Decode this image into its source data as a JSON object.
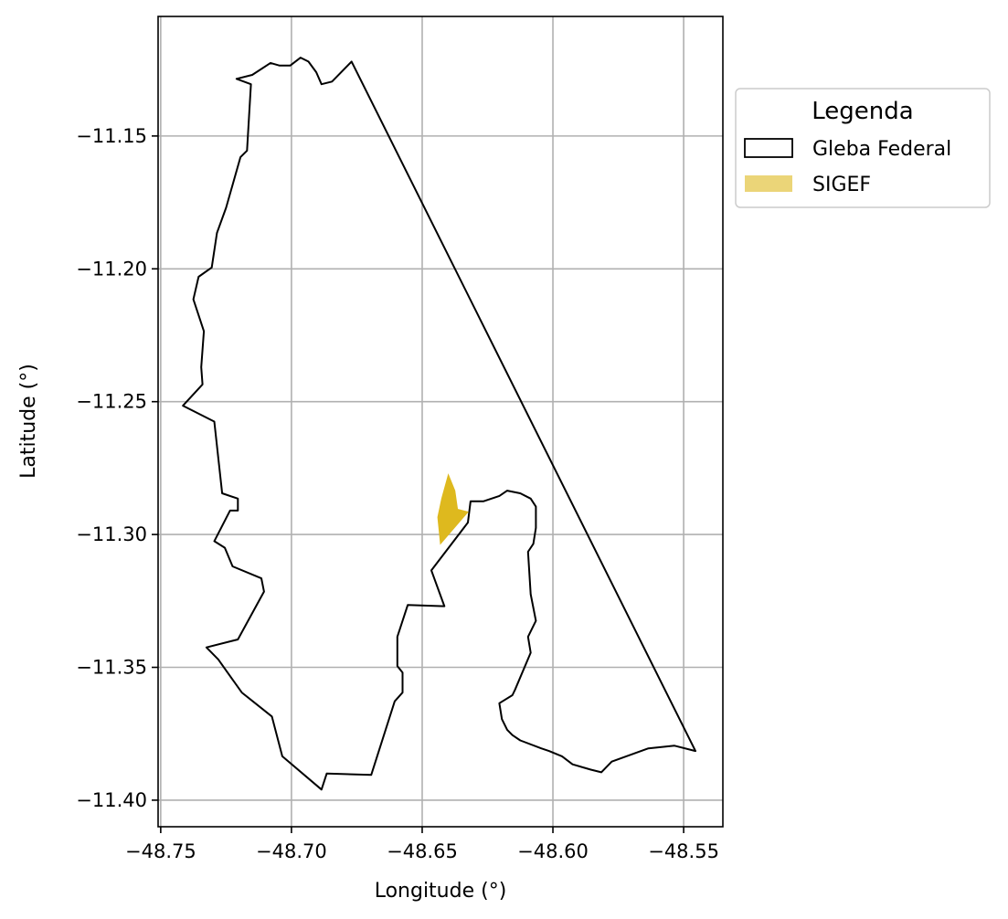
{
  "chart_data": {
    "type": "map",
    "xlabel": "Longitude (°)",
    "ylabel": "Latitude (°)",
    "xlim": [
      -48.751,
      -48.535
    ],
    "ylim": [
      -11.41,
      -11.105
    ],
    "x_ticks": [
      -48.75,
      -48.7,
      -48.65,
      -48.6,
      -48.55
    ],
    "x_tick_labels": [
      "−48.75",
      "−48.70",
      "−48.65",
      "−48.60",
      "−48.55"
    ],
    "y_ticks": [
      -11.15,
      -11.2,
      -11.25,
      -11.3,
      -11.35,
      -11.4
    ],
    "y_tick_labels": [
      "−11.15",
      "−11.20",
      "−11.25",
      "−11.30",
      "−11.35",
      "−11.40"
    ],
    "grid": true,
    "legend": {
      "title": "Legenda",
      "placement": "outside-right",
      "entries": [
        "Gleba Federal",
        "SIGEF"
      ]
    },
    "layers": [
      {
        "name": "Gleba Federal",
        "style": "outline",
        "color": "#000000",
        "coordinates": [
          [
            -48.677,
            -11.122
          ],
          [
            -48.6845,
            -11.1295
          ],
          [
            -48.6885,
            -11.1305
          ],
          [
            -48.6905,
            -11.126
          ],
          [
            -48.6935,
            -11.122
          ],
          [
            -48.6965,
            -11.1205
          ],
          [
            -48.7005,
            -11.1235
          ],
          [
            -48.7045,
            -11.1235
          ],
          [
            -48.708,
            -11.1225
          ],
          [
            -48.715,
            -11.127
          ],
          [
            -48.721,
            -11.1285
          ],
          [
            -48.7155,
            -11.1305
          ],
          [
            -48.717,
            -11.1555
          ],
          [
            -48.7195,
            -11.158
          ],
          [
            -48.725,
            -11.177
          ],
          [
            -48.7285,
            -11.1865
          ],
          [
            -48.7305,
            -11.1995
          ],
          [
            -48.7355,
            -11.203
          ],
          [
            -48.7375,
            -11.2115
          ],
          [
            -48.7335,
            -11.2235
          ],
          [
            -48.7345,
            -11.237
          ],
          [
            -48.734,
            -11.2435
          ],
          [
            -48.7415,
            -11.2515
          ],
          [
            -48.7295,
            -11.2575
          ],
          [
            -48.7265,
            -11.2845
          ],
          [
            -48.7205,
            -11.2865
          ],
          [
            -48.7205,
            -11.291
          ],
          [
            -48.7235,
            -11.291
          ],
          [
            -48.7295,
            -11.3025
          ],
          [
            -48.7255,
            -11.305
          ],
          [
            -48.7225,
            -11.312
          ],
          [
            -48.7115,
            -11.3165
          ],
          [
            -48.7105,
            -11.3215
          ],
          [
            -48.7205,
            -11.3395
          ],
          [
            -48.7325,
            -11.3425
          ],
          [
            -48.728,
            -11.347
          ],
          [
            -48.719,
            -11.3595
          ],
          [
            -48.7075,
            -11.3685
          ],
          [
            -48.7035,
            -11.3835
          ],
          [
            -48.6885,
            -11.396
          ],
          [
            -48.6865,
            -11.39
          ],
          [
            -48.6695,
            -11.3905
          ],
          [
            -48.6605,
            -11.3628
          ],
          [
            -48.6575,
            -11.3595
          ],
          [
            -48.6575,
            -11.352
          ],
          [
            -48.6595,
            -11.3495
          ],
          [
            -48.6595,
            -11.3385
          ],
          [
            -48.6555,
            -11.3265
          ],
          [
            -48.6415,
            -11.327
          ],
          [
            -48.6465,
            -11.3135
          ],
          [
            -48.6325,
            -11.2955
          ],
          [
            -48.6315,
            -11.2875
          ],
          [
            -48.6265,
            -11.2875
          ],
          [
            -48.6205,
            -11.2855
          ],
          [
            -48.6175,
            -11.2835
          ],
          [
            -48.6125,
            -11.2845
          ],
          [
            -48.6085,
            -11.2865
          ],
          [
            -48.6065,
            -11.2895
          ],
          [
            -48.6065,
            -11.2975
          ],
          [
            -48.6075,
            -11.3035
          ],
          [
            -48.6095,
            -11.3065
          ],
          [
            -48.6085,
            -11.3225
          ],
          [
            -48.6065,
            -11.3325
          ],
          [
            -48.6095,
            -11.3385
          ],
          [
            -48.6085,
            -11.3445
          ],
          [
            -48.6145,
            -11.3585
          ],
          [
            -48.6155,
            -11.3605
          ],
          [
            -48.6205,
            -11.3635
          ],
          [
            -48.6195,
            -11.3695
          ],
          [
            -48.6175,
            -11.3735
          ],
          [
            -48.6155,
            -11.3755
          ],
          [
            -48.6125,
            -11.3775
          ],
          [
            -48.6045,
            -11.3805
          ],
          [
            -48.6015,
            -11.3815
          ],
          [
            -48.5965,
            -11.3835
          ],
          [
            -48.5925,
            -11.3865
          ],
          [
            -48.5855,
            -11.3885
          ],
          [
            -48.5815,
            -11.3895
          ],
          [
            -48.5775,
            -11.3855
          ],
          [
            -48.5635,
            -11.3805
          ],
          [
            -48.5535,
            -11.3795
          ],
          [
            -48.5455,
            -11.3815
          ],
          [
            -48.677,
            -11.122
          ]
        ]
      },
      {
        "name": "SIGEF",
        "style": "filled",
        "color": "#DEB91E",
        "coordinates": [
          [
            -48.64,
            -11.2775
          ],
          [
            -48.6375,
            -11.2835
          ],
          [
            -48.6365,
            -11.2905
          ],
          [
            -48.6325,
            -11.2915
          ],
          [
            -48.643,
            -11.3035
          ],
          [
            -48.644,
            -11.2935
          ],
          [
            -48.6425,
            -11.2865
          ],
          [
            -48.64,
            -11.2775
          ]
        ]
      }
    ]
  }
}
